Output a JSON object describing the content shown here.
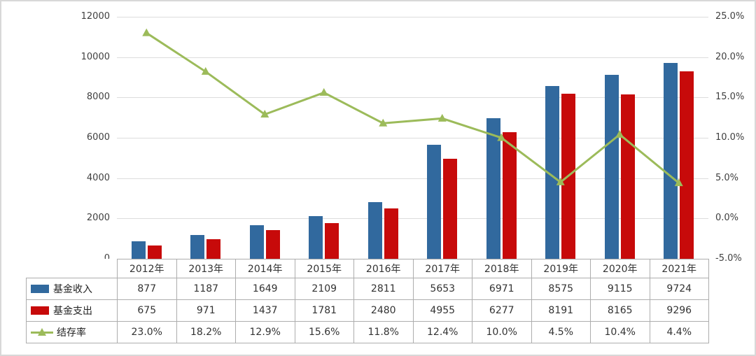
{
  "chart_data": {
    "type": "bar+line",
    "title": "",
    "categories": [
      "2012年",
      "2013年",
      "2014年",
      "2015年",
      "2016年",
      "2017年",
      "2018年",
      "2019年",
      "2020年",
      "2021年"
    ],
    "series": [
      {
        "key": "income",
        "name": "基金收入",
        "type": "bar",
        "color": "#31699e",
        "values": [
          877,
          1187,
          1649,
          2109,
          2811,
          5653,
          6971,
          8575,
          9115,
          9724
        ]
      },
      {
        "key": "expense",
        "name": "基金支出",
        "type": "bar",
        "color": "#c70a0a",
        "values": [
          675,
          971,
          1437,
          1781,
          2480,
          4955,
          6277,
          8191,
          8165,
          9296
        ]
      },
      {
        "key": "rate",
        "name": "结存率",
        "type": "line",
        "color": "#9cbb5a",
        "values_pct": [
          23.0,
          18.2,
          12.9,
          15.6,
          11.8,
          12.4,
          10.0,
          4.5,
          10.4,
          4.4
        ],
        "labels": [
          "23.0%",
          "18.2%",
          "12.9%",
          "15.6%",
          "11.8%",
          "12.4%",
          "10.0%",
          "4.5%",
          "10.4%",
          "4.4%"
        ]
      }
    ],
    "left_axis": {
      "min": 0,
      "max": 12000,
      "step": 2000,
      "ticks_top_to_bottom": [
        "12000",
        "10000",
        "8000",
        "6000",
        "4000",
        "2000",
        "0"
      ]
    },
    "right_axis": {
      "min": -5,
      "max": 25,
      "step": 5,
      "ticks_top_to_bottom": [
        "25.0%",
        "20.0%",
        "15.0%",
        "10.0%",
        "5.0%",
        "0.0%",
        "-5.0%"
      ]
    },
    "grid": true,
    "legend_position": "table-left"
  }
}
